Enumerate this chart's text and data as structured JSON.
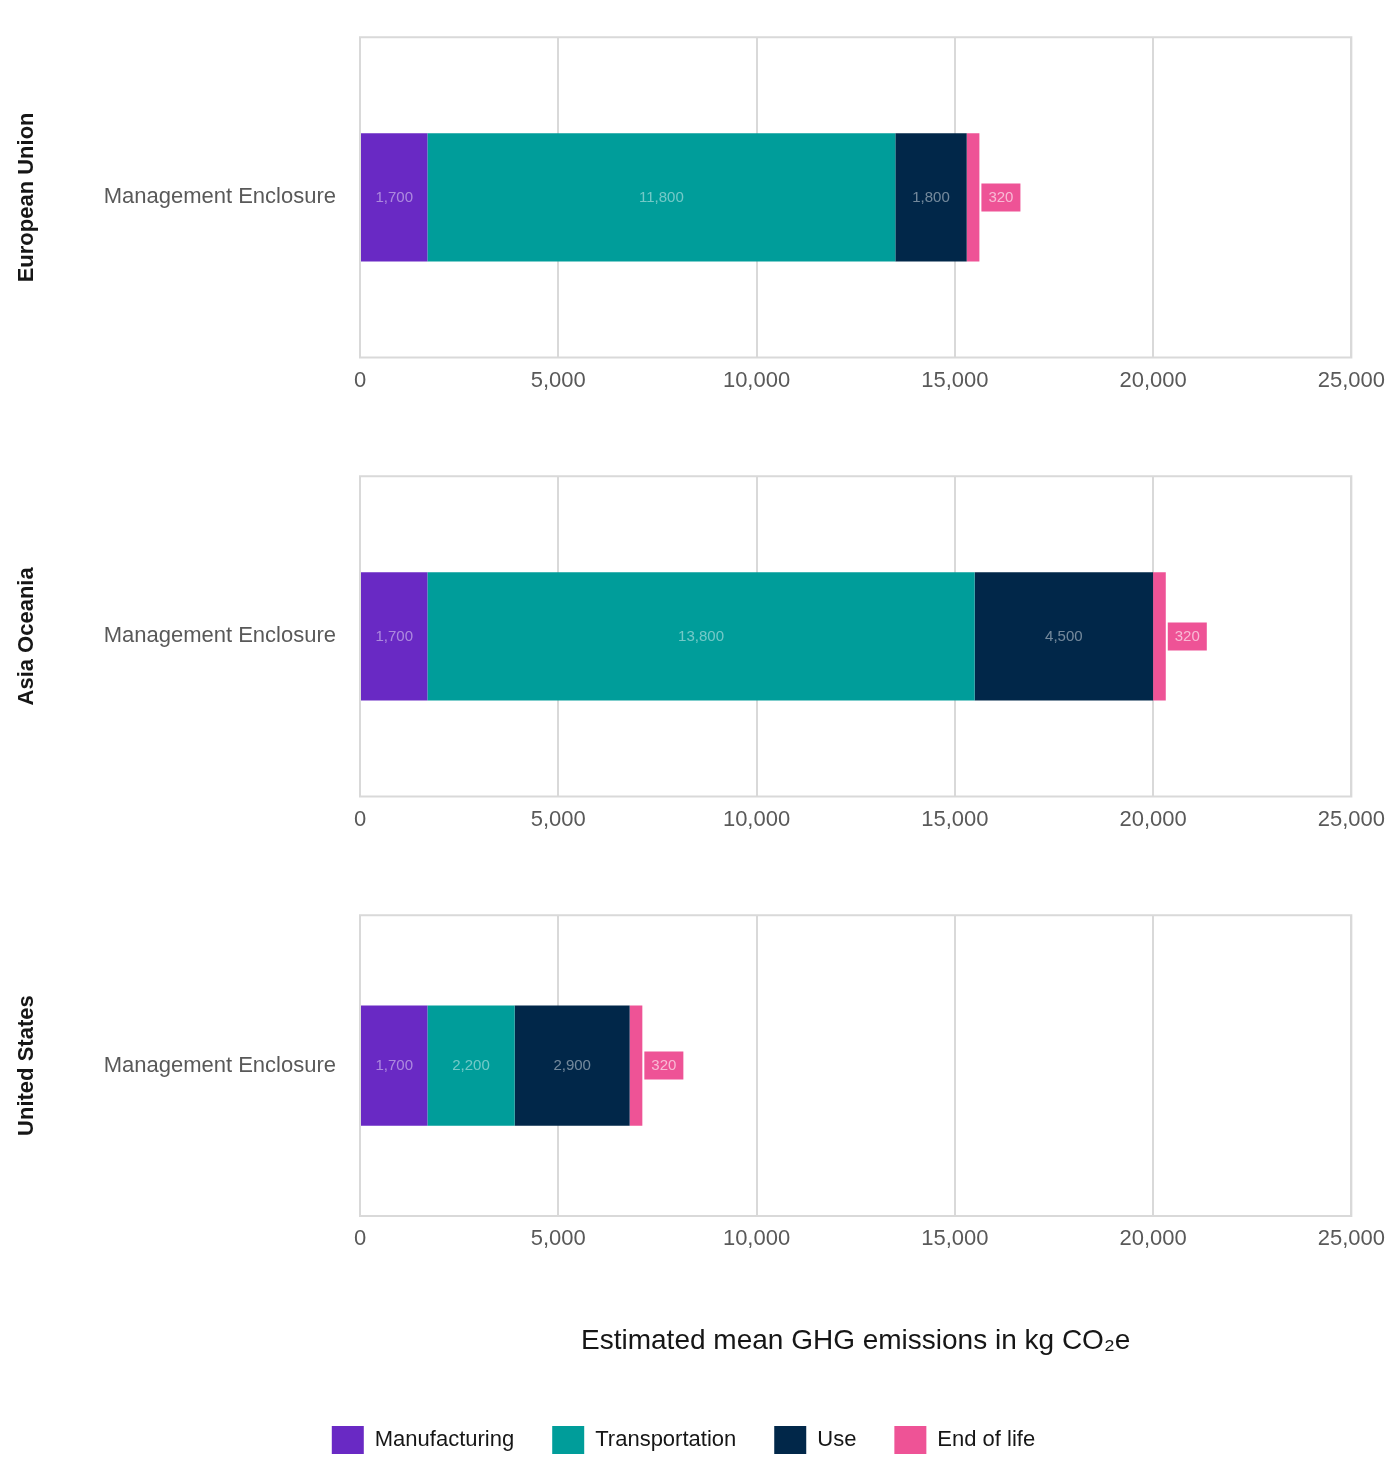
{
  "chart_data": [
    {
      "type": "bar",
      "orientation": "horizontal",
      "stacked": true,
      "ylabel": "European Union",
      "categories": [
        "Management Enclosure"
      ],
      "xlim": [
        0,
        25000
      ],
      "xticks": [
        {
          "value": 0,
          "label": "0"
        },
        {
          "value": 5000,
          "label": "5,000"
        },
        {
          "value": 10000,
          "label": "10,000"
        },
        {
          "value": 15000,
          "label": "15,000"
        },
        {
          "value": 20000,
          "label": "20,000"
        },
        {
          "value": 25000,
          "label": "25,000"
        }
      ],
      "grid": "x",
      "legend": false,
      "series": [
        {
          "color": "#6929c4",
          "values": [
            1700
          ],
          "value_labels": [
            "1,700"
          ]
        },
        {
          "color": "#009d9a",
          "values": [
            11800
          ],
          "value_labels": [
            "11,800"
          ]
        },
        {
          "color": "#012749",
          "values": [
            1800
          ],
          "value_labels": [
            "1,800"
          ]
        },
        {
          "color": "#ee5396",
          "values": [
            320
          ],
          "value_labels": [
            "320"
          ]
        }
      ]
    },
    {
      "type": "bar",
      "orientation": "horizontal",
      "stacked": true,
      "ylabel": "Asia Oceania",
      "categories": [
        "Management Enclosure"
      ],
      "xlim": [
        0,
        25000
      ],
      "xticks": [
        {
          "value": 0,
          "label": "0"
        },
        {
          "value": 5000,
          "label": "5,000"
        },
        {
          "value": 10000,
          "label": "10,000"
        },
        {
          "value": 15000,
          "label": "15,000"
        },
        {
          "value": 20000,
          "label": "20,000"
        },
        {
          "value": 25000,
          "label": "25,000"
        }
      ],
      "grid": "x",
      "legend": false,
      "series": [
        {
          "color": "#6929c4",
          "values": [
            1700
          ],
          "value_labels": [
            "1,700"
          ]
        },
        {
          "color": "#009d9a",
          "values": [
            13800
          ],
          "value_labels": [
            "13,800"
          ]
        },
        {
          "color": "#012749",
          "values": [
            4500
          ],
          "value_labels": [
            "4,500"
          ]
        },
        {
          "color": "#ee5396",
          "values": [
            320
          ],
          "value_labels": [
            "320"
          ]
        }
      ]
    },
    {
      "type": "bar",
      "orientation": "horizontal",
      "stacked": true,
      "ylabel": "United States",
      "xlabel": "Estimated mean GHG emissions in kg CO₂e",
      "categories": [
        "Management Enclosure"
      ],
      "xlim": [
        0,
        25000
      ],
      "xticks": [
        {
          "value": 0,
          "label": "0"
        },
        {
          "value": 5000,
          "label": "5,000"
        },
        {
          "value": 10000,
          "label": "10,000"
        },
        {
          "value": 15000,
          "label": "15,000"
        },
        {
          "value": 20000,
          "label": "20,000"
        },
        {
          "value": 25000,
          "label": "25,000"
        }
      ],
      "grid": "x",
      "legend": "bottom",
      "series": [
        {
          "name": "Manufacturing",
          "color": "#6929c4",
          "values": [
            1700
          ],
          "value_labels": [
            "1,700"
          ]
        },
        {
          "name": "Transportation",
          "color": "#009d9a",
          "values": [
            2200
          ],
          "value_labels": [
            "2,200"
          ]
        },
        {
          "name": "Use",
          "color": "#012749",
          "values": [
            2900
          ],
          "value_labels": [
            "2,900"
          ]
        },
        {
          "name": "End of life",
          "color": "#ee5396",
          "values": [
            320
          ],
          "value_labels": [
            "320"
          ]
        }
      ]
    }
  ]
}
